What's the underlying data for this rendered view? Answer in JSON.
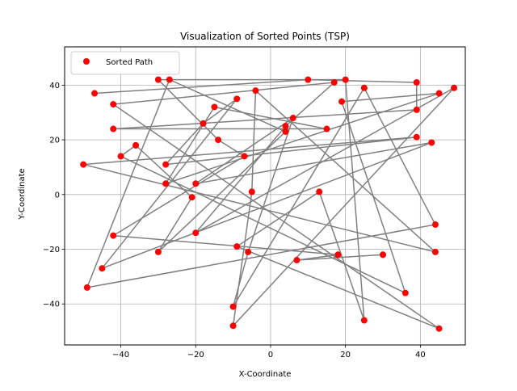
{
  "chart_data": {
    "type": "scatter",
    "title": "Visualization of Sorted Points (TSP)",
    "xlabel": "X-Coordinate",
    "ylabel": "Y-Coordinate",
    "xlim": [
      -55,
      52
    ],
    "ylim": [
      -55,
      54
    ],
    "xticks": [
      -40,
      -20,
      0,
      20,
      40
    ],
    "yticks": [
      -40,
      -20,
      0,
      20,
      40
    ],
    "xtick_labels": [
      "−40",
      "−20",
      "0",
      "20",
      "40"
    ],
    "ytick_labels": [
      "−40",
      "−20",
      "0",
      "20",
      "40"
    ],
    "grid": true,
    "legend": {
      "position": "upper-left",
      "label": "Sorted Path"
    },
    "marker_color": "#ff0000",
    "line_color": "#808080",
    "series": [
      {
        "name": "Sorted Path",
        "x": [
          -47,
          10,
          39,
          39,
          -42,
          15,
          -15,
          -28,
          45,
          19,
          36,
          -40,
          -36,
          -21,
          -30,
          4,
          -27,
          -49,
          44,
          25,
          -10,
          -6,
          6,
          -20,
          43,
          -45,
          -9,
          -18,
          -28,
          39,
          -50,
          44,
          -4,
          -5,
          -10,
          49,
          -20,
          4,
          17,
          -42,
          45,
          -9,
          13,
          25,
          20,
          -30,
          -14,
          -7,
          -42,
          18,
          7,
          30
        ],
        "y": [
          37,
          42,
          41,
          31,
          24,
          24,
          32,
          4,
          37,
          34,
          -36,
          14,
          18,
          -1,
          -21,
          23,
          42,
          -34,
          -11,
          39,
          -41,
          -21,
          28,
          4,
          19,
          -27,
          35,
          26,
          11,
          21,
          11,
          -21,
          38,
          1,
          -48,
          39,
          -14,
          25,
          41,
          33,
          -49,
          -19,
          1,
          -46,
          42,
          42,
          20,
          14,
          -15,
          -22,
          -24,
          -22
        ]
      }
    ]
  }
}
